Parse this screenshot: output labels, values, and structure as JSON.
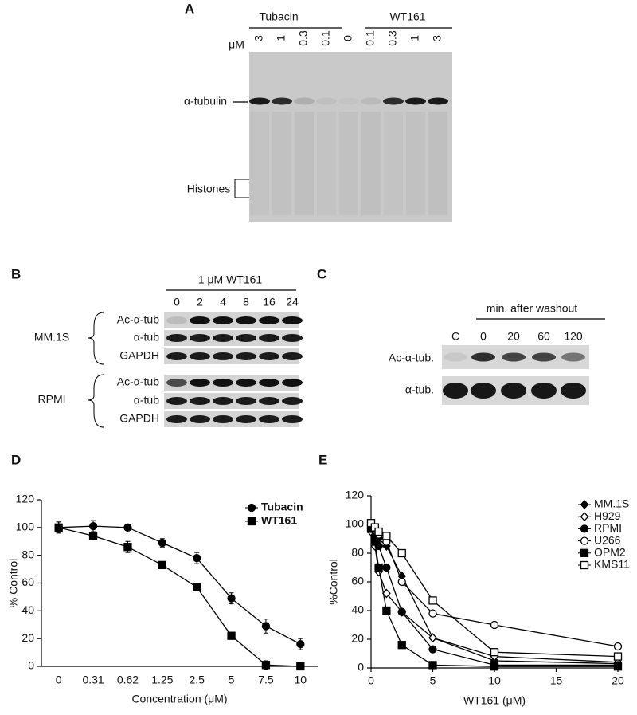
{
  "panel_a": {
    "label": "A",
    "groups": [
      "Tubacin",
      "WT161"
    ],
    "unit": "μM",
    "lanes": [
      "3",
      "1",
      "0.3",
      "0.1",
      "0",
      "0.1",
      "0.3",
      "1",
      "3"
    ],
    "bands": [
      "α-tubulin",
      "Histones"
    ]
  },
  "panel_b": {
    "label": "B",
    "header": "1 μM WT161",
    "lanes": [
      "0",
      "2",
      "4",
      "8",
      "16",
      "24"
    ],
    "groups": [
      {
        "name": "MM.1S",
        "rows": [
          "Ac-α-tub",
          "α-tub",
          "GAPDH"
        ]
      },
      {
        "name": "RPMI",
        "rows": [
          "Ac-α-tub",
          "α-tub",
          "GAPDH"
        ]
      }
    ]
  },
  "panel_c": {
    "label": "C",
    "header": "min. after washout",
    "lanes": [
      "C",
      "0",
      "20",
      "60",
      "120"
    ],
    "rows": [
      "Ac-α-tub.",
      "α-tub."
    ]
  },
  "chart_data": [
    {
      "type": "line",
      "label": "D",
      "ylabel": "% Control",
      "xlabel": "Concentration (μM)",
      "categories": [
        "0",
        "0.31",
        "0.62",
        "1.25",
        "2.5",
        "5",
        "7.5",
        "10"
      ],
      "ylim": [
        0,
        120
      ],
      "yticks": [
        0,
        20,
        40,
        60,
        80,
        100,
        120
      ],
      "legend": "upper right",
      "series": [
        {
          "name": "Tubacin",
          "color": "#000000",
          "marker": "circle",
          "values": [
            100,
            101,
            100,
            89,
            78,
            49,
            29,
            16
          ],
          "errors": [
            4,
            4,
            2,
            3,
            4,
            4,
            5,
            4
          ]
        },
        {
          "name": "WT161",
          "color": "#000000",
          "marker": "square",
          "values": [
            100,
            94,
            86,
            73,
            57,
            22,
            1,
            0
          ],
          "errors": [
            4,
            3,
            4,
            2,
            2,
            2,
            3,
            1
          ]
        }
      ]
    },
    {
      "type": "line",
      "label": "E",
      "ylabel": "%Control",
      "xlabel": "WT161 (μM)",
      "x": [
        0,
        0.31,
        0.62,
        1.25,
        2.5,
        5,
        10,
        20
      ],
      "xlim": [
        0,
        20
      ],
      "xticks": [
        0,
        5,
        10,
        15,
        20
      ],
      "ylim": [
        0,
        120
      ],
      "yticks": [
        0,
        20,
        40,
        60,
        80,
        100,
        120
      ],
      "legend": "upper right",
      "series": [
        {
          "name": "MM.1S",
          "color": "#000000",
          "marker": "diamond",
          "values": [
            97,
            93,
            90,
            85,
            64,
            21,
            5,
            3
          ]
        },
        {
          "name": "H929",
          "color": "#000000",
          "marker": "diamond-open",
          "values": [
            95,
            85,
            67,
            52,
            39,
            21,
            8,
            4
          ]
        },
        {
          "name": "RPMI",
          "color": "#000000",
          "marker": "circle",
          "values": [
            98,
            92,
            85,
            70,
            39,
            13,
            2,
            2
          ]
        },
        {
          "name": "U266",
          "color": "#000000",
          "marker": "circle-open",
          "values": [
            100,
            96,
            93,
            88,
            60,
            38,
            30,
            15
          ]
        },
        {
          "name": "OPM2",
          "color": "#000000",
          "marker": "square",
          "values": [
            97,
            88,
            70,
            40,
            16,
            2,
            1,
            1
          ]
        },
        {
          "name": "KMS11",
          "color": "#000000",
          "marker": "square-open",
          "values": [
            101,
            98,
            95,
            92,
            80,
            47,
            11,
            8
          ]
        }
      ]
    }
  ]
}
